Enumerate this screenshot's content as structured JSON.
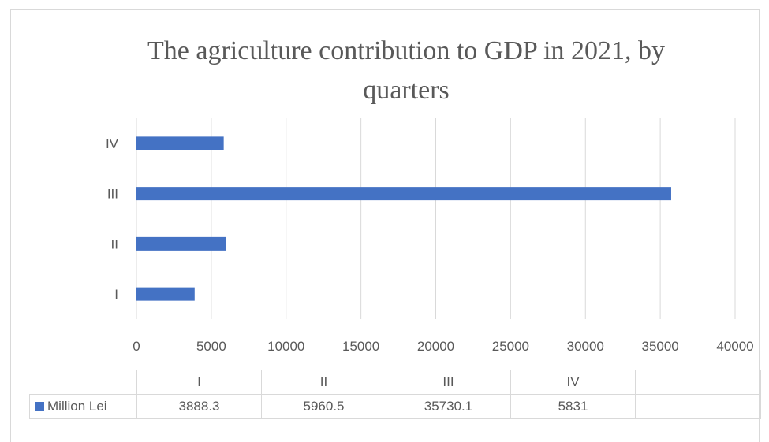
{
  "chart_data": {
    "type": "bar",
    "orientation": "horizontal",
    "title": "The agriculture contribution to GDP in 2021, by quarters",
    "categories": [
      "I",
      "II",
      "III",
      "IV"
    ],
    "series": [
      {
        "name": "Million Lei",
        "values": [
          3888.3,
          5960.5,
          35730.1,
          5831
        ],
        "color": "#4472c4"
      }
    ],
    "value_labels": [
      "3888.3",
      "5960.5",
      "35730.1",
      "5831"
    ],
    "xlim": [
      0,
      40000
    ],
    "x_ticks": [
      "0",
      "5000",
      "10000",
      "15000",
      "20000",
      "25000",
      "30000",
      "35000",
      "40000"
    ],
    "grid": true,
    "legend": "data table",
    "gridline_color": "#d9d9d9",
    "text_color": "#595959"
  }
}
